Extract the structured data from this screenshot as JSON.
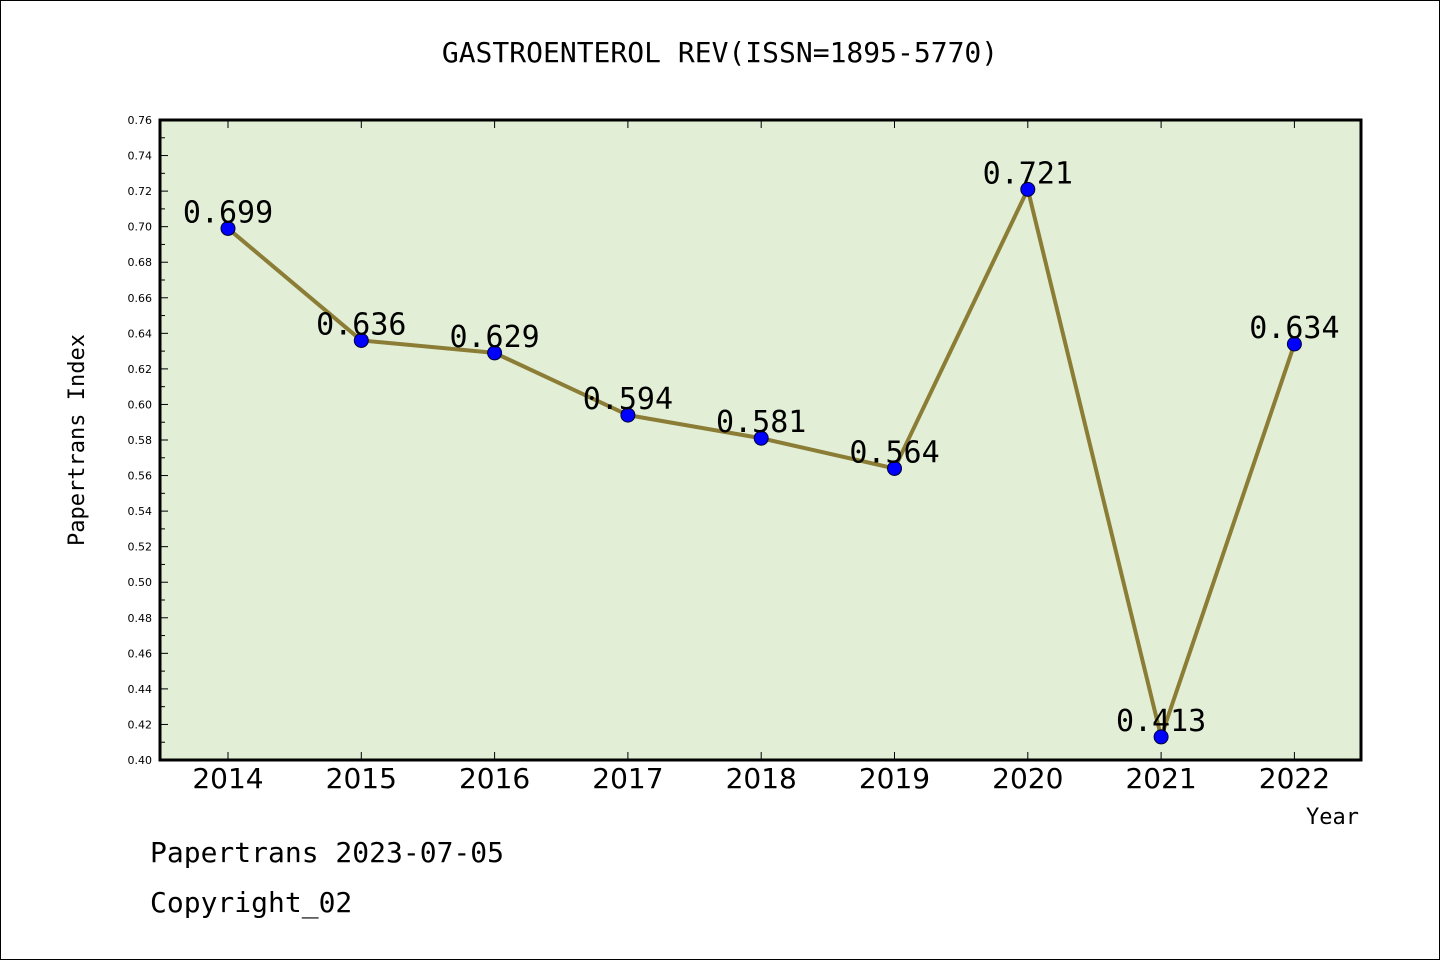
{
  "colors": {
    "plot_background": "#e2efd6",
    "line": "#8b7d35",
    "marker": "#0000ff",
    "axis": "#000000"
  },
  "chart_data": {
    "type": "line",
    "title": "GASTROENTEROL REV(ISSN=1895-5770)",
    "xlabel": "Year",
    "ylabel": "Papertrans Index",
    "categories": [
      "2014",
      "2015",
      "2016",
      "2017",
      "2018",
      "2019",
      "2020",
      "2021",
      "2022"
    ],
    "series": [
      {
        "values": [
          0.699,
          0.636,
          0.629,
          0.594,
          0.581,
          0.564,
          0.721,
          0.413,
          0.634
        ],
        "labels": [
          "0.699",
          "0.636",
          "0.629",
          "0.594",
          "0.581",
          "0.564",
          "0.721",
          "0.413",
          "0.634"
        ]
      }
    ],
    "ylim": [
      0.4,
      0.76
    ],
    "y_ticks": [
      "0.40",
      "0.42",
      "0.44",
      "0.46",
      "0.48",
      "0.50",
      "0.52",
      "0.54",
      "0.56",
      "0.58",
      "0.60",
      "0.62",
      "0.64",
      "0.66",
      "0.68",
      "0.70",
      "0.72",
      "0.74",
      "0.76"
    ],
    "grid": false,
    "legend": "none"
  },
  "footer": {
    "line1": "Papertrans 2023-07-05",
    "line2": "Copyright_02"
  }
}
